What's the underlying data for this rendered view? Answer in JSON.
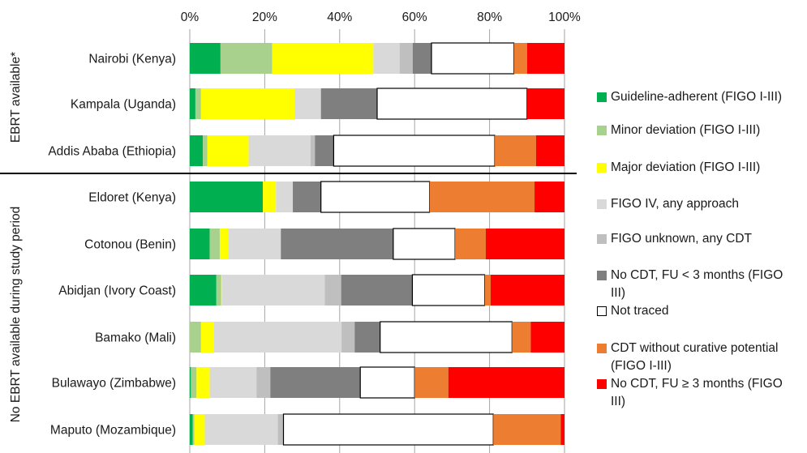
{
  "chart_data": {
    "type": "bar",
    "orientation": "horizontal",
    "stacked": true,
    "normalized_percent": true,
    "xlim": [
      0,
      100
    ],
    "x_ticks": [
      "0%",
      "20%",
      "40%",
      "60%",
      "80%",
      "100%"
    ],
    "grid": "vertical gridlines",
    "groups": [
      {
        "label": "EBRT available*",
        "categories": [
          "Nairobi (Kenya)",
          "Kampala (Uganda)",
          "Addis Ababa (Ethiopia)"
        ]
      },
      {
        "label": "No EBRT available during study period",
        "categories": [
          "Eldoret (Kenya)",
          "Cotonou (Benin)",
          "Abidjan (Ivory Coast)",
          "Bamako (Mali)",
          "Bulawayo (Zimbabwe)",
          "Maputo (Mozambique)"
        ]
      }
    ],
    "categories": [
      "Nairobi (Kenya)",
      "Kampala (Uganda)",
      "Addis Ababa (Ethiopia)",
      "Eldoret (Kenya)",
      "Cotonou (Benin)",
      "Abidjan (Ivory Coast)",
      "Bamako (Mali)",
      "Bulawayo (Zimbabwe)",
      "Maputo (Mozambique)"
    ],
    "series": [
      {
        "name": "Guideline-adherent (FIGO I-III)",
        "color": "#00b050",
        "values": [
          8.2,
          1.5,
          3.5,
          19.5,
          5.3,
          7.1,
          0.0,
          0.3,
          0.8
        ]
      },
      {
        "name": "Minor deviation (FIGO I-III)",
        "color": "#a9d18e",
        "values": [
          13.8,
          1.5,
          1.2,
          0.0,
          2.7,
          1.3,
          3.0,
          1.5,
          0.4
        ]
      },
      {
        "name": "Major deviation (FIGO I-III)",
        "color": "#ffff00",
        "values": [
          27.0,
          25.0,
          11.0,
          3.5,
          2.3,
          0.2,
          3.5,
          3.5,
          2.8
        ]
      },
      {
        "name": "FIGO IV, any approach",
        "color": "#d9d9d9",
        "values": [
          7.0,
          7.0,
          16.5,
          4.5,
          14.0,
          27.4,
          34.0,
          12.5,
          19.5
        ]
      },
      {
        "name": "FIGO unknown, any CDT",
        "color": "#bfbfbf",
        "values": [
          3.5,
          0.0,
          1.2,
          0.0,
          0.0,
          4.4,
          3.5,
          3.7,
          1.5
        ]
      },
      {
        "name": "No CDT, FU < 3 months (FIGO III)",
        "color": "#7f7f7f",
        "values": [
          5.0,
          15.0,
          5.0,
          7.5,
          30.0,
          19.0,
          6.8,
          24.0,
          0.0
        ]
      },
      {
        "name": "Not traced",
        "color": "#ffffff",
        "values": [
          22.0,
          40.0,
          43.0,
          29.0,
          16.5,
          19.3,
          35.2,
          14.5,
          56.0
        ]
      },
      {
        "name": "CDT without curative potential (FIGO I-III)",
        "color": "#ed7d31",
        "values": [
          3.5,
          0.0,
          11.0,
          28.0,
          8.2,
          1.6,
          5.0,
          9.0,
          18.0
        ]
      },
      {
        "name": "No CDT, FU ≥ 3 months (FIGO III)",
        "color": "#ff0000",
        "values": [
          10.0,
          10.0,
          7.6,
          8.0,
          21.0,
          19.7,
          9.0,
          31.0,
          1.0
        ]
      }
    ],
    "legend_position": "right"
  },
  "legend": [
    {
      "lines": [
        "Guideline-adherent (FIGO I-III)"
      ],
      "color": "#00b050",
      "outline": false
    },
    {
      "lines": [
        "Minor deviation (FIGO I-III)"
      ],
      "color": "#a9d18e",
      "outline": false
    },
    {
      "lines": [
        "Major deviation (FIGO I-III)"
      ],
      "color": "#ffff00",
      "outline": false
    },
    {
      "lines": [
        "FIGO IV, any approach"
      ],
      "color": "#d9d9d9",
      "outline": false
    },
    {
      "lines": [
        "FIGO unknown, any CDT"
      ],
      "color": "#bfbfbf",
      "outline": false
    },
    {
      "lines": [
        "No CDT, FU < 3 months (FIGO",
        "III)"
      ],
      "color": "#7f7f7f",
      "outline": false
    },
    {
      "lines": [
        "Not traced"
      ],
      "color": "#ffffff",
      "outline": true
    },
    {
      "lines": [
        "CDT without curative potential",
        "(FIGO I-III)"
      ],
      "color": "#ed7d31",
      "outline": false
    },
    {
      "lines": [
        "No CDT, FU ≥ 3 months (FIGO",
        "III)"
      ],
      "color": "#ff0000",
      "outline": false
    }
  ]
}
